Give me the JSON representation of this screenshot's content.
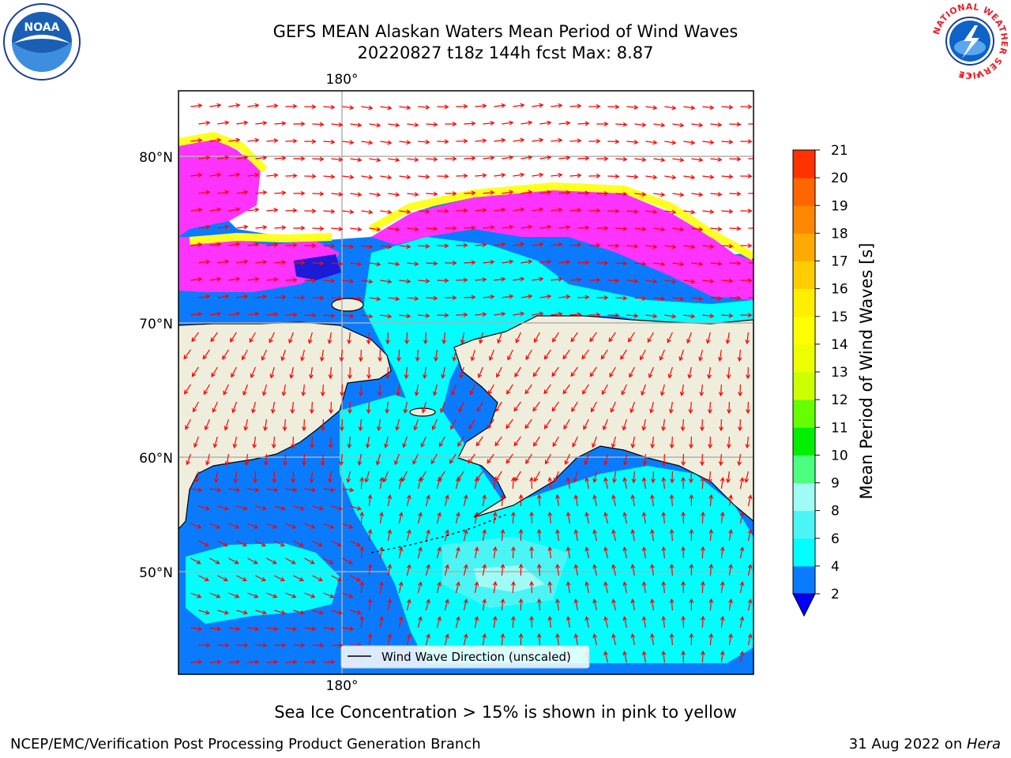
{
  "header": {
    "title_line1": "GEFS MEAN Alaskan Waters Mean Period of Wind Waves",
    "title_line2": "20220827 t18z 144h fcst   Max: 8.87"
  },
  "logos": {
    "noaa": "NOAA",
    "nws_ring": "NATIONAL WEATHER SERVICE"
  },
  "map": {
    "lon_labels": [
      "180°",
      "180°"
    ],
    "lat_labels": [
      "80°N",
      "70°N",
      "60°N",
      "50°N"
    ],
    "legend_label": "Wind Wave Direction (unscaled)",
    "colors": {
      "land": "#efeedc",
      "wave_2_4": "#0a7bff",
      "wave_4_6": "#00ffff",
      "wave_6_8": "#4cf5f5",
      "wave_8_9": "#a0fbf5",
      "ice_low": "#ff33ff",
      "ice_high": "#ffff22",
      "arrow": "#ff0000"
    }
  },
  "colorbar": {
    "label": "Mean Period of Wind Waves [s]",
    "ticks": [
      "2",
      "4",
      "6",
      "8",
      "9",
      "10",
      "11",
      "12",
      "13",
      "14",
      "15",
      "16",
      "17",
      "18",
      "19",
      "20",
      "21"
    ],
    "colors": [
      "#0a7bff",
      "#00ffff",
      "#4cf5f5",
      "#a0fbf5",
      "#4cff80",
      "#00ef00",
      "#66ff00",
      "#ccff00",
      "#eeff00",
      "#ffff00",
      "#ffee00",
      "#ffcc00",
      "#ffaa00",
      "#ff8800",
      "#ff6600",
      "#ff3300",
      "#ff0000"
    ],
    "under_color": "#0000ff"
  },
  "caption": "Sea Ice Concentration > 15% is shown in pink to yellow",
  "footer": {
    "left": "NCEP/EMC/Verification Post Processing Product Generation Branch",
    "right_prefix": "31 Aug 2022 on ",
    "right_host": "Hera"
  }
}
